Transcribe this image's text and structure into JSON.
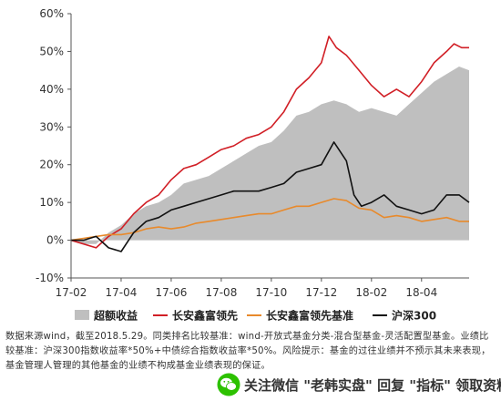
{
  "chart_data": {
    "type": "line",
    "y_ticks": [
      "-10%",
      "0%",
      "10%",
      "20%",
      "30%",
      "40%",
      "50%",
      "60%"
    ],
    "y_tick_values": [
      -10,
      0,
      10,
      20,
      30,
      40,
      50,
      60
    ],
    "ylim": [
      -10,
      60
    ],
    "x_ticks": [
      "17-02",
      "17-04",
      "17-06",
      "17-08",
      "17-10",
      "17-12",
      "18-02",
      "18-04"
    ],
    "x_tick_positions": [
      0,
      2,
      4,
      6,
      8,
      10,
      12,
      14
    ],
    "xlim": [
      0,
      15.9
    ],
    "grid": false,
    "legend_position": "bottom",
    "series": [
      {
        "name": "超额收益",
        "kind": "area",
        "color": "#bfbfbf",
        "x": [
          0,
          0.5,
          1,
          1.5,
          2,
          2.5,
          3,
          3.5,
          4,
          4.5,
          5,
          5.5,
          6,
          6.5,
          7,
          7.5,
          8,
          8.5,
          9,
          9.5,
          10,
          10.5,
          11,
          11.5,
          12,
          12.5,
          13,
          13.5,
          14,
          14.5,
          15,
          15.5,
          15.9
        ],
        "values": [
          0,
          -1,
          -1,
          2,
          4,
          7,
          9,
          10,
          12,
          15,
          16,
          17,
          19,
          21,
          23,
          25,
          26,
          29,
          33,
          34,
          36,
          37,
          36,
          34,
          35,
          34,
          33,
          36,
          39,
          42,
          44,
          46,
          45
        ]
      },
      {
        "name": "长安鑫富领先",
        "kind": "line",
        "color": "#d11f26",
        "x": [
          0,
          0.5,
          1,
          1.5,
          2,
          2.5,
          3,
          3.5,
          4,
          4.5,
          5,
          5.5,
          6,
          6.5,
          7,
          7.5,
          8,
          8.5,
          9,
          9.5,
          10,
          10.3,
          10.6,
          11,
          11.5,
          12,
          12.5,
          13,
          13.5,
          14,
          14.5,
          15,
          15.3,
          15.6,
          15.9
        ],
        "values": [
          0,
          -1,
          -2,
          1,
          3,
          7,
          10,
          12,
          16,
          19,
          20,
          22,
          24,
          25,
          27,
          28,
          30,
          34,
          40,
          43,
          47,
          54,
          51,
          49,
          45,
          41,
          38,
          40,
          38,
          42,
          47,
          50,
          52,
          51,
          51
        ]
      },
      {
        "name": "长安鑫富领先基准",
        "kind": "line",
        "color": "#e88a2c",
        "x": [
          0,
          0.5,
          1,
          1.5,
          2,
          2.5,
          3,
          3.5,
          4,
          4.5,
          5,
          5.5,
          6,
          6.5,
          7,
          7.5,
          8,
          8.5,
          9,
          9.5,
          10,
          10.5,
          11,
          11.5,
          12,
          12.5,
          13,
          13.5,
          14,
          14.5,
          15,
          15.5,
          15.9
        ],
        "values": [
          0,
          0.5,
          1,
          1.5,
          1.5,
          2,
          3,
          3.5,
          3,
          3.5,
          4.5,
          5,
          5.5,
          6,
          6.5,
          7,
          7,
          8,
          9,
          9,
          10,
          11,
          10.5,
          8.5,
          8,
          6,
          6.5,
          6,
          5,
          5.5,
          6,
          5,
          5
        ]
      },
      {
        "name": "沪深300",
        "kind": "line",
        "color": "#111111",
        "x": [
          0,
          0.5,
          1,
          1.5,
          2,
          2.5,
          3,
          3.5,
          4,
          4.5,
          5,
          5.5,
          6,
          6.5,
          7,
          7.5,
          8,
          8.5,
          9,
          9.5,
          10,
          10.5,
          11,
          11.3,
          11.6,
          12,
          12.5,
          13,
          13.5,
          14,
          14.5,
          15,
          15.5,
          15.9
        ],
        "values": [
          0,
          0,
          1,
          -2,
          -3,
          2,
          5,
          6,
          8,
          9,
          10,
          11,
          12,
          13,
          13,
          13,
          14,
          15,
          18,
          19,
          20,
          26,
          21,
          12,
          9,
          10,
          12,
          9,
          8,
          7,
          8,
          12,
          12,
          10
        ]
      }
    ]
  },
  "footnote": "数据来源wind，截至2018.5.29。同类排名比较基准：wind-开放式基金分类-混合型基金-灵活配置型基金。业绩比较基准：沪深300指数收益率*50%+中债综合指数收益率*50%。风险提示：基金的过往业绩并不预示其未来表现，基金管理人管理的其他基金的业绩不构成基金业绩表现的保证。",
  "watermark": {
    "text": "关注微信 \"老韩实盘\" 回复 \"指标\" 领取资料",
    "icon": "wechat-icon"
  }
}
